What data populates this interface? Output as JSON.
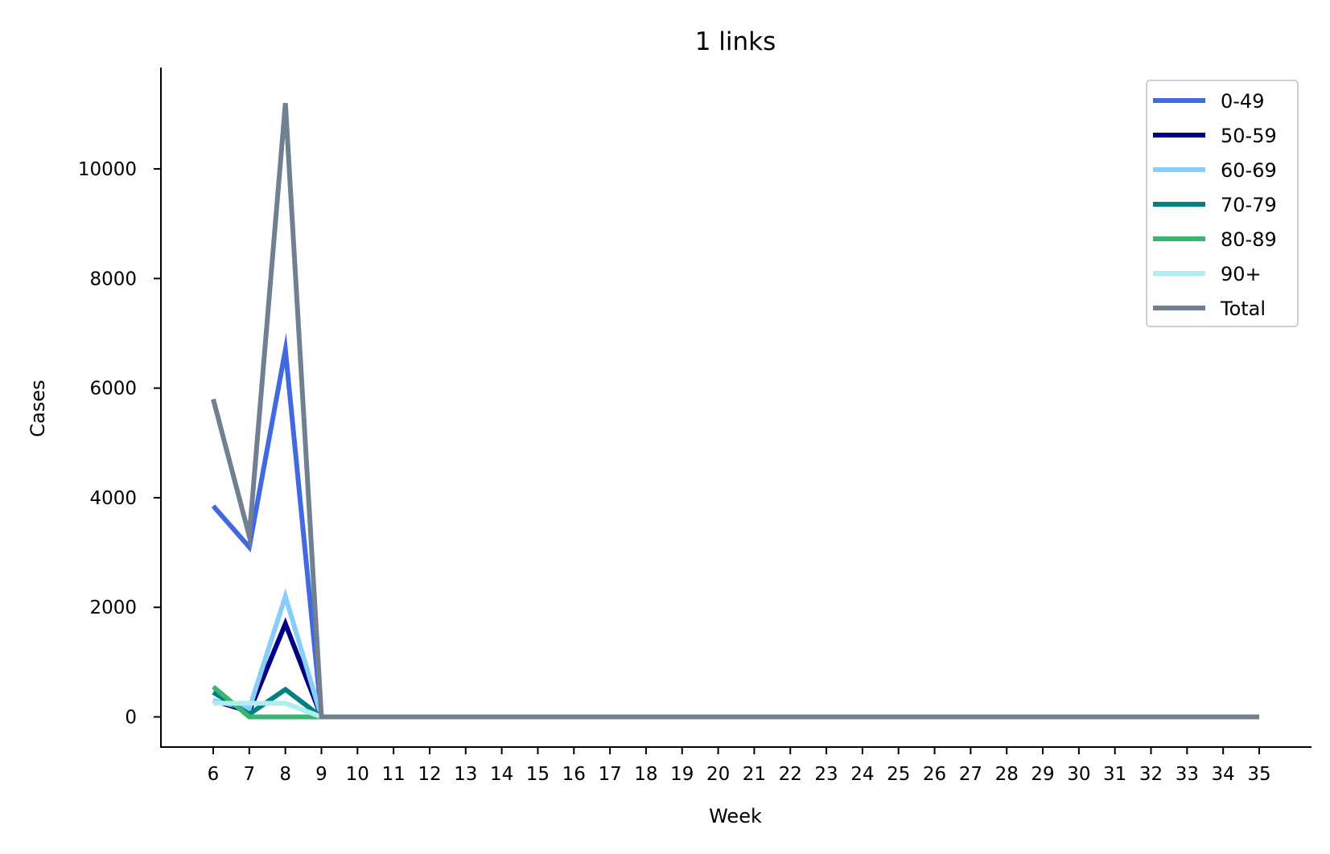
{
  "chart_data": {
    "type": "line",
    "title": "1 links",
    "xlabel": "Week",
    "ylabel": "Cases",
    "x": [
      6,
      7,
      8,
      9,
      10,
      11,
      12,
      13,
      14,
      15,
      16,
      17,
      18,
      19,
      20,
      21,
      22,
      23,
      24,
      25,
      26,
      27,
      28,
      29,
      30,
      31,
      32,
      33,
      34,
      35
    ],
    "yticks": [
      0,
      2000,
      4000,
      6000,
      8000,
      10000
    ],
    "ylim": [
      -550,
      11850
    ],
    "xlim": [
      4.55,
      36.45
    ],
    "grid": false,
    "legend_position": "top-right",
    "series": [
      {
        "name": "0-49",
        "color": "#4169e1",
        "values": [
          3850,
          3100,
          6700,
          0,
          0,
          0,
          0,
          0,
          0,
          0,
          0,
          0,
          0,
          0,
          0,
          0,
          0,
          0,
          0,
          0,
          0,
          0,
          0,
          0,
          0,
          0,
          0,
          0,
          0,
          0
        ]
      },
      {
        "name": "50-59",
        "color": "#000080",
        "values": [
          300,
          100,
          1700,
          0,
          0,
          0,
          0,
          0,
          0,
          0,
          0,
          0,
          0,
          0,
          0,
          0,
          0,
          0,
          0,
          0,
          0,
          0,
          0,
          0,
          0,
          0,
          0,
          0,
          0,
          0
        ]
      },
      {
        "name": "60-69",
        "color": "#87cefa",
        "values": [
          300,
          150,
          2200,
          0,
          0,
          0,
          0,
          0,
          0,
          0,
          0,
          0,
          0,
          0,
          0,
          0,
          0,
          0,
          0,
          0,
          0,
          0,
          0,
          0,
          0,
          0,
          0,
          0,
          0,
          0
        ]
      },
      {
        "name": "70-79",
        "color": "#008080",
        "values": [
          450,
          50,
          500,
          0,
          0,
          0,
          0,
          0,
          0,
          0,
          0,
          0,
          0,
          0,
          0,
          0,
          0,
          0,
          0,
          0,
          0,
          0,
          0,
          0,
          0,
          0,
          0,
          0,
          0,
          0
        ]
      },
      {
        "name": "80-89",
        "color": "#3cb371",
        "values": [
          550,
          0,
          0,
          0,
          0,
          0,
          0,
          0,
          0,
          0,
          0,
          0,
          0,
          0,
          0,
          0,
          0,
          0,
          0,
          0,
          0,
          0,
          0,
          0,
          0,
          0,
          0,
          0,
          0,
          0
        ]
      },
      {
        "name": "90+",
        "color": "#afeeee",
        "values": [
          250,
          250,
          250,
          0,
          0,
          0,
          0,
          0,
          0,
          0,
          0,
          0,
          0,
          0,
          0,
          0,
          0,
          0,
          0,
          0,
          0,
          0,
          0,
          0,
          0,
          0,
          0,
          0,
          0,
          0
        ]
      },
      {
        "name": "Total",
        "color": "#708090",
        "values": [
          5800,
          3300,
          11200,
          0,
          0,
          0,
          0,
          0,
          0,
          0,
          0,
          0,
          0,
          0,
          0,
          0,
          0,
          0,
          0,
          0,
          0,
          0,
          0,
          0,
          0,
          0,
          0,
          0,
          0,
          0
        ]
      }
    ]
  }
}
